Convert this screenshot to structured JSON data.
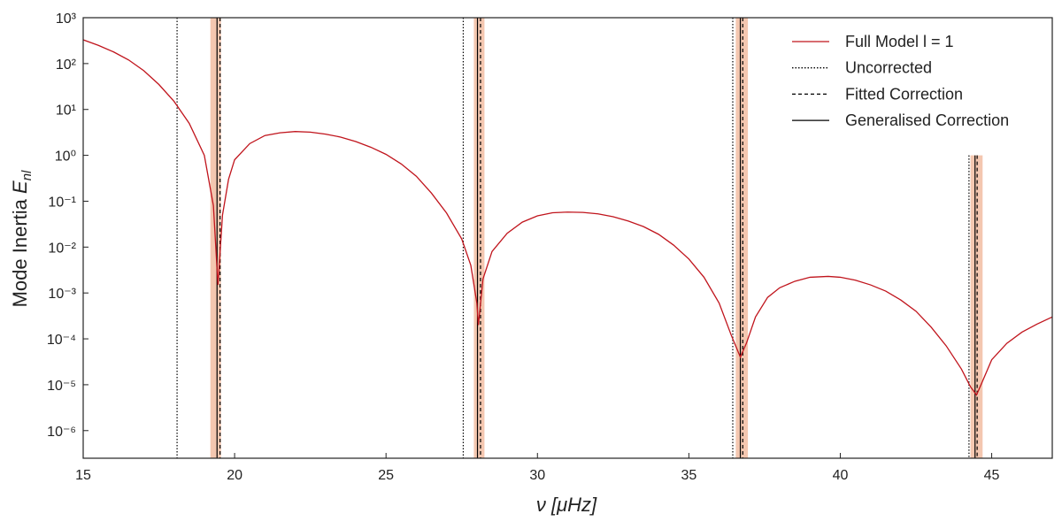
{
  "chart_data": {
    "type": "line",
    "ylabel": "Mode Inertia",
    "ylabel_symbol": "E",
    "ylabel_subscript": "nl",
    "xlabel": "ν [μHz]",
    "xlim": [
      15,
      47
    ],
    "xticks": [
      15,
      20,
      25,
      30,
      35,
      40,
      45
    ],
    "ylim": [
      2.5e-07,
      1000
    ],
    "log_y": true,
    "yticks": [
      {
        "value": 1e-06,
        "label": "10⁻⁶"
      },
      {
        "value": 1e-05,
        "label": "10⁻⁵"
      },
      {
        "value": 0.0001,
        "label": "10⁻⁴"
      },
      {
        "value": 0.001,
        "label": "10⁻³"
      },
      {
        "value": 0.01,
        "label": "10⁻²"
      },
      {
        "value": 0.1,
        "label": "10⁻¹"
      },
      {
        "value": 1,
        "label": "10⁰"
      },
      {
        "value": 10,
        "label": "10¹"
      },
      {
        "value": 100,
        "label": "10²"
      },
      {
        "value": 1000,
        "label": "10³"
      }
    ],
    "legend": "top-right",
    "series": [
      {
        "name": "Full Model l = 1",
        "color": "#c0141c",
        "x": [
          15,
          15.5,
          16,
          16.5,
          17,
          17.5,
          18,
          18.5,
          19,
          19.3,
          19.45,
          19.6,
          19.8,
          20,
          20.5,
          21,
          21.5,
          22,
          22.5,
          23,
          23.5,
          24,
          24.5,
          25,
          25.5,
          26,
          26.5,
          27,
          27.5,
          27.8,
          28.0,
          28.05,
          28.2,
          28.5,
          29,
          29.5,
          30,
          30.5,
          31,
          31.5,
          32,
          32.5,
          33,
          33.5,
          34,
          34.5,
          35,
          35.5,
          36,
          36.4,
          36.7,
          36.9,
          37.2,
          37.6,
          38,
          38.5,
          39,
          39.6,
          40,
          40.5,
          41,
          41.5,
          42,
          42.5,
          43,
          43.5,
          44,
          44.3,
          44.5,
          44.7,
          45,
          45.5,
          46,
          46.5,
          47
        ],
        "values": [
          330,
          250,
          180,
          120,
          70,
          35,
          15,
          5,
          1,
          0.08,
          0.0015,
          0.05,
          0.3,
          0.8,
          1.8,
          2.7,
          3.1,
          3.3,
          3.2,
          2.9,
          2.5,
          2.0,
          1.5,
          1.05,
          0.65,
          0.35,
          0.15,
          0.055,
          0.015,
          0.004,
          0.0006,
          0.0002,
          0.002,
          0.008,
          0.02,
          0.035,
          0.048,
          0.056,
          0.058,
          0.057,
          0.053,
          0.046,
          0.037,
          0.028,
          0.019,
          0.011,
          0.0055,
          0.0022,
          0.0006,
          0.00012,
          4e-05,
          8e-05,
          0.0003,
          0.0008,
          0.0013,
          0.0018,
          0.0022,
          0.0023,
          0.0022,
          0.0019,
          0.0015,
          0.0011,
          0.0007,
          0.0004,
          0.00018,
          7e-05,
          2.2e-05,
          9e-06,
          6e-06,
          1.2e-05,
          3.5e-05,
          8e-05,
          0.00014,
          0.00021,
          0.0003
        ]
      }
    ],
    "reference_lines": [
      {
        "name": "Uncorrected",
        "style": "dotted",
        "color": "#000000",
        "x": [
          18.1,
          27.55,
          36.45,
          44.25
        ],
        "ytop": [
          1000,
          1000,
          1000,
          1
        ]
      },
      {
        "name": "Fitted Correction",
        "style": "dashed",
        "color": "#000000",
        "x": [
          19.52,
          28.12,
          36.78,
          44.52
        ],
        "ytop": [
          1000,
          1000,
          1000,
          1
        ]
      },
      {
        "name": "Generalised Correction",
        "style": "solid",
        "color": "#000000",
        "x": [
          19.42,
          28.02,
          36.7,
          44.45
        ],
        "ytop": [
          1000,
          1000,
          1000,
          1
        ]
      }
    ],
    "bands": {
      "color": "#f4c7b0",
      "ranges": [
        [
          19.2,
          19.55
        ],
        [
          27.9,
          28.25
        ],
        [
          36.55,
          36.95
        ],
        [
          44.3,
          44.7
        ]
      ],
      "ytop": [
        1000,
        1000,
        1000,
        1
      ]
    }
  }
}
